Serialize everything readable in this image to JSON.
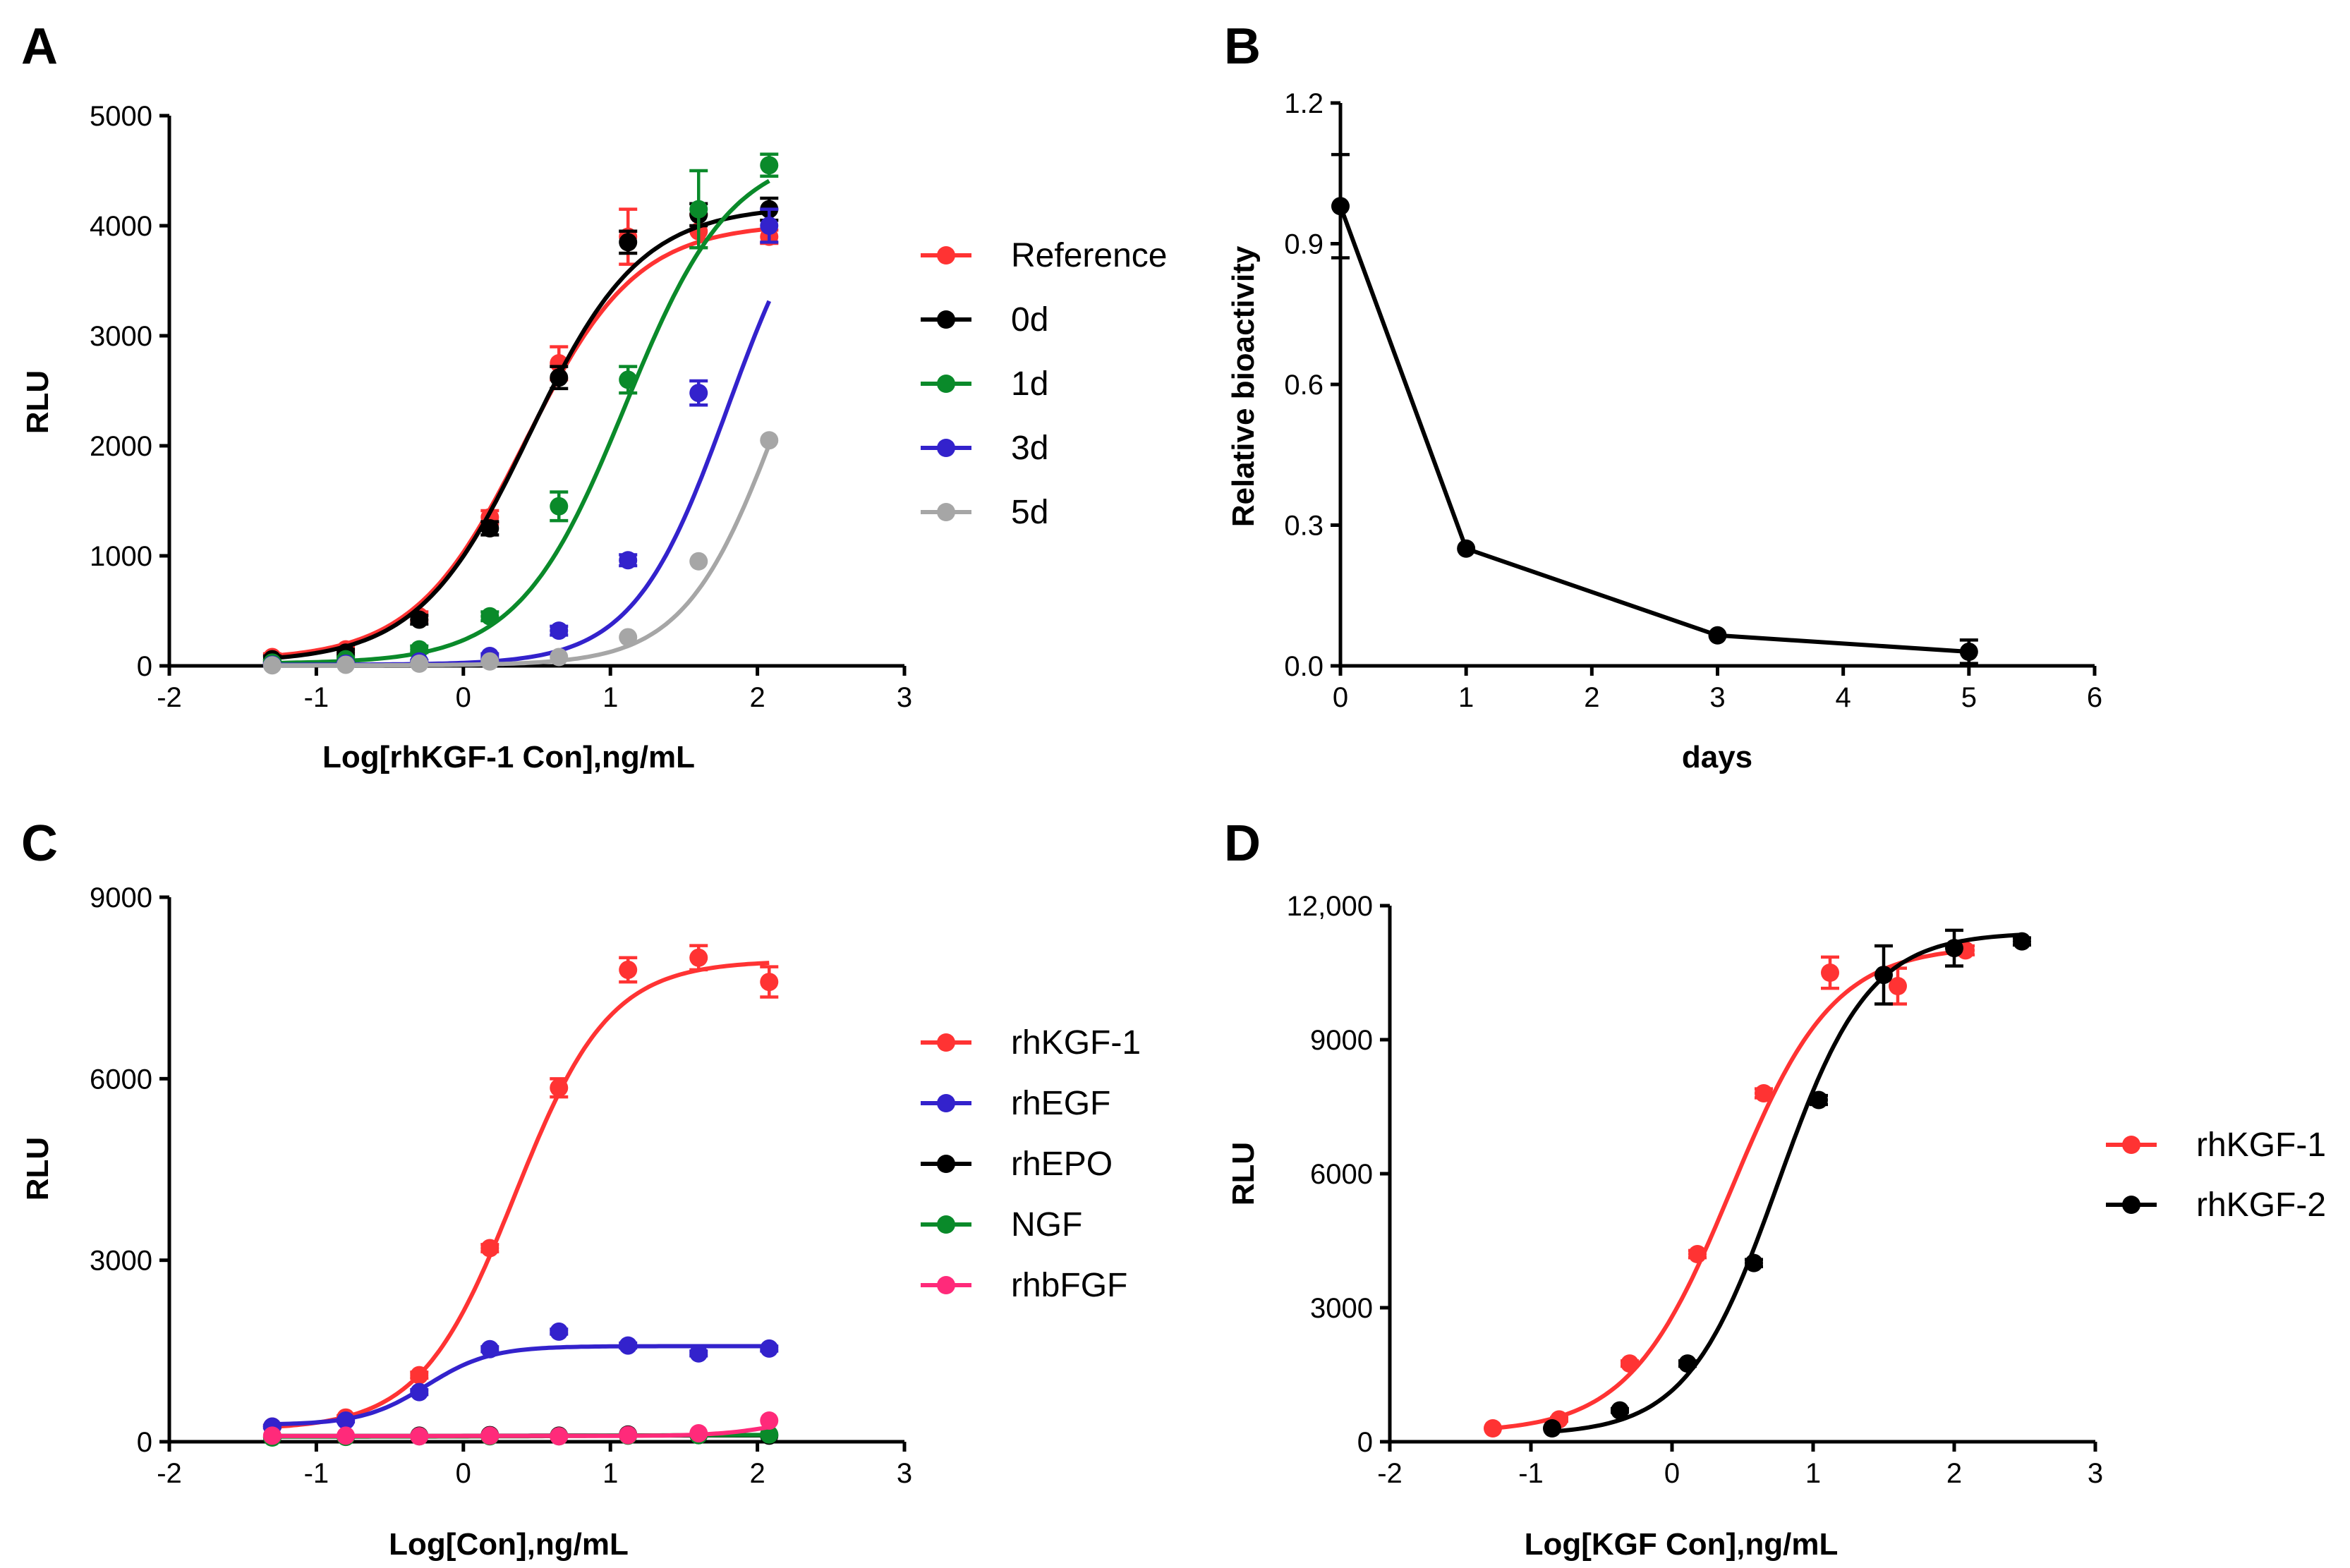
{
  "chart_data": [
    {
      "panel": "A",
      "type": "scatter",
      "xlabel": "Log[rhKGF-1 Con],ng/mL",
      "ylabel": "RLU",
      "xlim": [
        -2,
        3
      ],
      "ylim": [
        0,
        5000
      ],
      "xticks": [
        -2,
        -1,
        0,
        1,
        2,
        3
      ],
      "yticks": [
        0,
        1000,
        2000,
        3000,
        4000,
        5000
      ],
      "ytick_labels": [
        "0",
        "1000",
        "2000",
        "3000",
        "4000",
        "5000"
      ],
      "legend_position": "right",
      "series": [
        {
          "name": "Reference",
          "color": "#ff3333",
          "x": [
            -1.3,
            -0.8,
            -0.3,
            0.18,
            0.65,
            1.12,
            1.6,
            2.08
          ],
          "y": [
            80,
            150,
            450,
            1350,
            2750,
            3900,
            3950,
            3900
          ],
          "err": [
            30,
            30,
            40,
            60,
            150,
            250,
            150,
            60
          ],
          "curve": {
            "bottom": 50,
            "top": 4020,
            "ec50": 0.42,
            "hill": 1.15
          }
        },
        {
          "name": "0d",
          "color": "#000000",
          "x": [
            -1.3,
            -0.8,
            -0.3,
            0.18,
            0.65,
            1.12,
            1.6,
            2.08
          ],
          "y": [
            60,
            120,
            420,
            1250,
            2620,
            3850,
            4100,
            4150
          ],
          "err": [
            30,
            30,
            40,
            60,
            100,
            100,
            100,
            100
          ],
          "curve": {
            "bottom": 30,
            "top": 4180,
            "ec50": 0.45,
            "hill": 1.15
          }
        },
        {
          "name": "1d",
          "color": "#0a8a2a",
          "x": [
            -1.3,
            -0.8,
            -0.3,
            0.18,
            0.65,
            1.12,
            1.6,
            2.08
          ],
          "y": [
            30,
            60,
            150,
            450,
            1450,
            2600,
            4150,
            4550
          ],
          "err": [
            20,
            20,
            30,
            40,
            130,
            120,
            350,
            100
          ],
          "curve": {
            "bottom": 20,
            "top": 4700,
            "ec50": 1.1,
            "hill": 1.2
          }
        },
        {
          "name": "3d",
          "color": "#3322cc",
          "x": [
            -1.3,
            -0.8,
            -0.3,
            0.18,
            0.65,
            1.12,
            1.6,
            2.08
          ],
          "y": [
            10,
            20,
            40,
            90,
            320,
            960,
            2480,
            4000
          ],
          "err": [
            10,
            10,
            10,
            20,
            40,
            50,
            110,
            150
          ],
          "curve": {
            "bottom": 10,
            "top": 4700,
            "ec50": 1.8,
            "hill": 1.35
          }
        },
        {
          "name": "5d",
          "color": "#a6a6a6",
          "x": [
            -1.3,
            -0.8,
            -0.3,
            0.18,
            0.65,
            1.12,
            1.6,
            2.08
          ],
          "y": [
            5,
            10,
            20,
            40,
            80,
            260,
            950,
            2050
          ],
          "err": [
            0,
            0,
            0,
            0,
            0,
            0,
            0,
            0
          ],
          "curve": {
            "bottom": 5,
            "top": 4500,
            "ec50": 2.15,
            "hill": 1.35
          }
        }
      ]
    },
    {
      "panel": "B",
      "type": "line",
      "xlabel": "days",
      "ylabel": "Relative bioactivity",
      "xlim": [
        0,
        6
      ],
      "ylim": [
        0,
        1.2
      ],
      "xticks": [
        0,
        1,
        2,
        3,
        4,
        5,
        6
      ],
      "yticks": [
        0,
        0.3,
        0.6,
        0.9,
        1.2
      ],
      "ytick_labels": [
        "0.0",
        "0.3",
        "0.6",
        "0.9",
        "1.2"
      ],
      "series": [
        {
          "name": "Relative bioactivity",
          "color": "#000000",
          "x": [
            0,
            1,
            3,
            5
          ],
          "y": [
            0.98,
            0.25,
            0.065,
            0.03
          ],
          "err": [
            0.11,
            0,
            0,
            0.025
          ]
        }
      ]
    },
    {
      "panel": "C",
      "type": "scatter",
      "xlabel": "Log[Con],ng/mL",
      "ylabel": "RLU",
      "xlim": [
        -2,
        3
      ],
      "ylim": [
        0,
        9000
      ],
      "xticks": [
        -2,
        -1,
        0,
        1,
        2,
        3
      ],
      "yticks": [
        0,
        3000,
        6000,
        9000
      ],
      "ytick_labels": [
        "0",
        "3000",
        "6000",
        "9000"
      ],
      "legend_position": "right",
      "series": [
        {
          "name": "rhKGF-1",
          "color": "#ff3333",
          "x": [
            -1.3,
            -0.8,
            -0.3,
            0.18,
            0.65,
            1.12,
            1.6,
            2.08
          ],
          "y": [
            250,
            400,
            1100,
            3200,
            5850,
            7800,
            8000,
            7600
          ],
          "err": [
            20,
            30,
            50,
            60,
            150,
            200,
            200,
            250
          ],
          "curve": {
            "bottom": 200,
            "top": 7950,
            "ec50": 0.35,
            "hill": 1.35
          }
        },
        {
          "name": "rhEGF",
          "color": "#3322cc",
          "x": [
            -1.3,
            -0.8,
            -0.3,
            0.18,
            0.65,
            1.12,
            1.6,
            2.08
          ],
          "y": [
            250,
            350,
            820,
            1530,
            1820,
            1590,
            1460,
            1540
          ],
          "err": [
            20,
            20,
            40,
            40,
            40,
            40,
            40,
            40
          ],
          "curve": {
            "bottom": 280,
            "top": 1580,
            "ec50": -0.25,
            "hill": 2.0
          }
        },
        {
          "name": "rhEPO",
          "color": "#000000",
          "x": [
            -1.3,
            -0.8,
            -0.3,
            0.18,
            0.65,
            1.12,
            1.6,
            2.08
          ],
          "y": [
            80,
            90,
            100,
            110,
            100,
            120,
            110,
            100
          ],
          "err": [
            0,
            0,
            0,
            0,
            0,
            0,
            0,
            0
          ],
          "curve": {
            "bottom": 95,
            "top": 105,
            "ec50": 0.5,
            "hill": 1
          }
        },
        {
          "name": "NGF",
          "color": "#0a8a2a",
          "x": [
            -1.3,
            -0.8,
            -0.3,
            0.18,
            0.65,
            1.12,
            1.6,
            2.08
          ],
          "y": [
            70,
            80,
            90,
            90,
            90,
            100,
            110,
            120
          ],
          "err": [
            0,
            0,
            0,
            0,
            0,
            0,
            0,
            0
          ],
          "curve": {
            "bottom": 85,
            "top": 115,
            "ec50": 1.0,
            "hill": 1
          }
        },
        {
          "name": "rhbFGF",
          "color": "#ff2a7a",
          "x": [
            -1.3,
            -0.8,
            -0.3,
            0.18,
            0.65,
            1.12,
            1.6,
            2.08
          ],
          "y": [
            100,
            100,
            90,
            100,
            90,
            110,
            140,
            350
          ],
          "err": [
            0,
            0,
            0,
            0,
            0,
            0,
            0,
            0
          ],
          "curve": {
            "bottom": 95,
            "top": 500,
            "ec50": 2.2,
            "hill": 2.0
          }
        }
      ]
    },
    {
      "panel": "D",
      "type": "scatter",
      "xlabel": "Log[KGF Con],ng/mL",
      "ylabel": "RLU",
      "xlim": [
        -2,
        3
      ],
      "ylim": [
        0,
        12000
      ],
      "xticks": [
        -2,
        -1,
        0,
        1,
        2,
        3
      ],
      "yticks": [
        0,
        3000,
        6000,
        9000,
        12000
      ],
      "ytick_labels": [
        "0",
        "3000",
        "6000",
        "9000",
        "12,000"
      ],
      "legend_position": "right",
      "series": [
        {
          "name": "rhKGF-1",
          "color": "#ff3333",
          "x": [
            -1.27,
            -0.8,
            -0.3,
            0.18,
            0.65,
            1.12,
            1.6,
            2.08
          ],
          "y": [
            300,
            500,
            1750,
            4200,
            7800,
            10500,
            10200,
            11000
          ],
          "err": [
            0,
            40,
            60,
            80,
            100,
            350,
            400,
            100
          ],
          "curve": {
            "bottom": 200,
            "top": 11100,
            "ec50": 0.42,
            "hill": 1.2
          }
        },
        {
          "name": "rhKGF-2",
          "color": "#000000",
          "x": [
            -0.85,
            -0.37,
            0.11,
            0.58,
            1.04,
            1.5,
            2.0,
            2.48
          ],
          "y": [
            300,
            700,
            1750,
            4000,
            7650,
            10450,
            11050,
            11200
          ],
          "err": [
            0,
            40,
            60,
            80,
            100,
            650,
            400,
            80
          ],
          "curve": {
            "bottom": 150,
            "top": 11400,
            "ec50": 0.75,
            "hill": 1.35
          }
        }
      ]
    }
  ]
}
